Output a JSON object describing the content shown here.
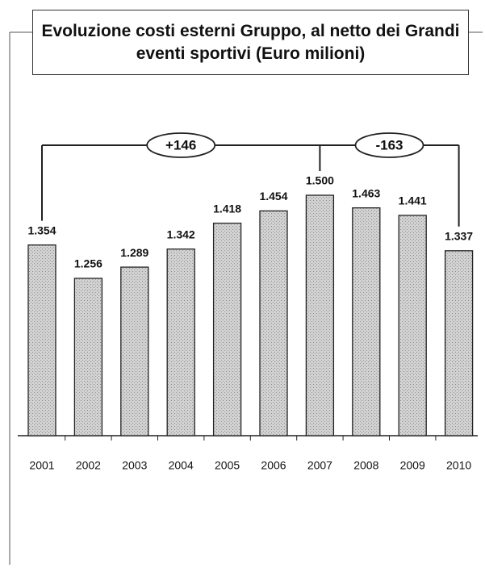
{
  "chart_data": {
    "type": "bar",
    "title": "Evoluzione costi esterni Gruppo, al netto dei Grandi eventi sportivi (Euro milioni)",
    "categories": [
      "2001",
      "2002",
      "2003",
      "2004",
      "2005",
      "2006",
      "2007",
      "2008",
      "2009",
      "2010"
    ],
    "values": [
      1354,
      1256,
      1289,
      1342,
      1418,
      1454,
      1500,
      1463,
      1441,
      1337
    ],
    "value_labels": [
      "1.354",
      "1.256",
      "1.289",
      "1.342",
      "1.418",
      "1.454",
      "1.500",
      "1.463",
      "1.441",
      "1.337"
    ],
    "color": "#cfcfcf",
    "annotations": [
      "+146",
      "-163"
    ]
  }
}
